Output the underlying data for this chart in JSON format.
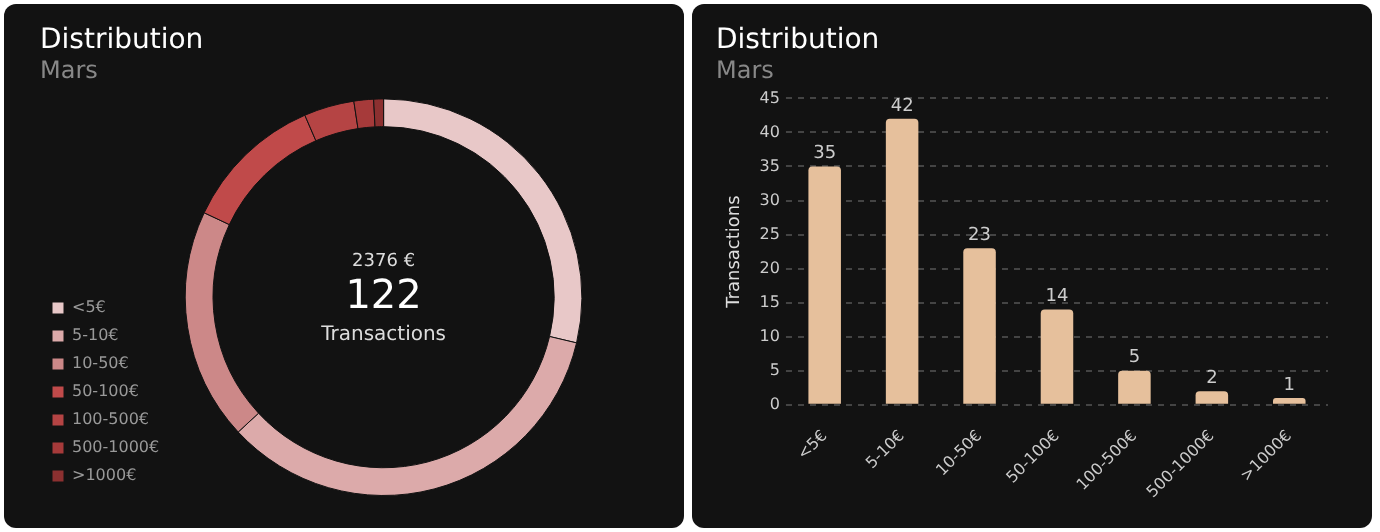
{
  "chart_data": [
    {
      "type": "donut",
      "title": "Distribution",
      "subtitle": "Mars",
      "categories": [
        "<5€",
        "5-10€",
        "10-50€",
        "50-100€",
        "100-500€",
        "500-1000€",
        ">1000€"
      ],
      "values": [
        28.7,
        34.4,
        18.9,
        11.5,
        4.1,
        1.6,
        0.8
      ],
      "colors": [
        "#e8c8c8",
        "#dcaaaa",
        "#cc8888",
        "#c04a4a",
        "#b54444",
        "#a63a3a",
        "#8c3030"
      ],
      "annotations": [
        "2376 €",
        "122",
        "Transactions"
      ],
      "legend": "bottom left"
    },
    {
      "type": "bar",
      "title": "Distribution",
      "subtitle": "Mars",
      "ylabel": "Transactions",
      "categories": [
        "<5€",
        "5-10€",
        "10-50€",
        "50-100€",
        "100-500€",
        "500-1000€",
        ">1000€"
      ],
      "values": [
        35,
        42,
        23,
        14,
        5,
        2,
        1
      ],
      "color": "#e6c09c",
      "ylim": [
        0,
        45
      ],
      "yticks": [
        0,
        5,
        10,
        15,
        20,
        25,
        30,
        35,
        40,
        45
      ],
      "grid": "y",
      "data_labels": true
    }
  ]
}
